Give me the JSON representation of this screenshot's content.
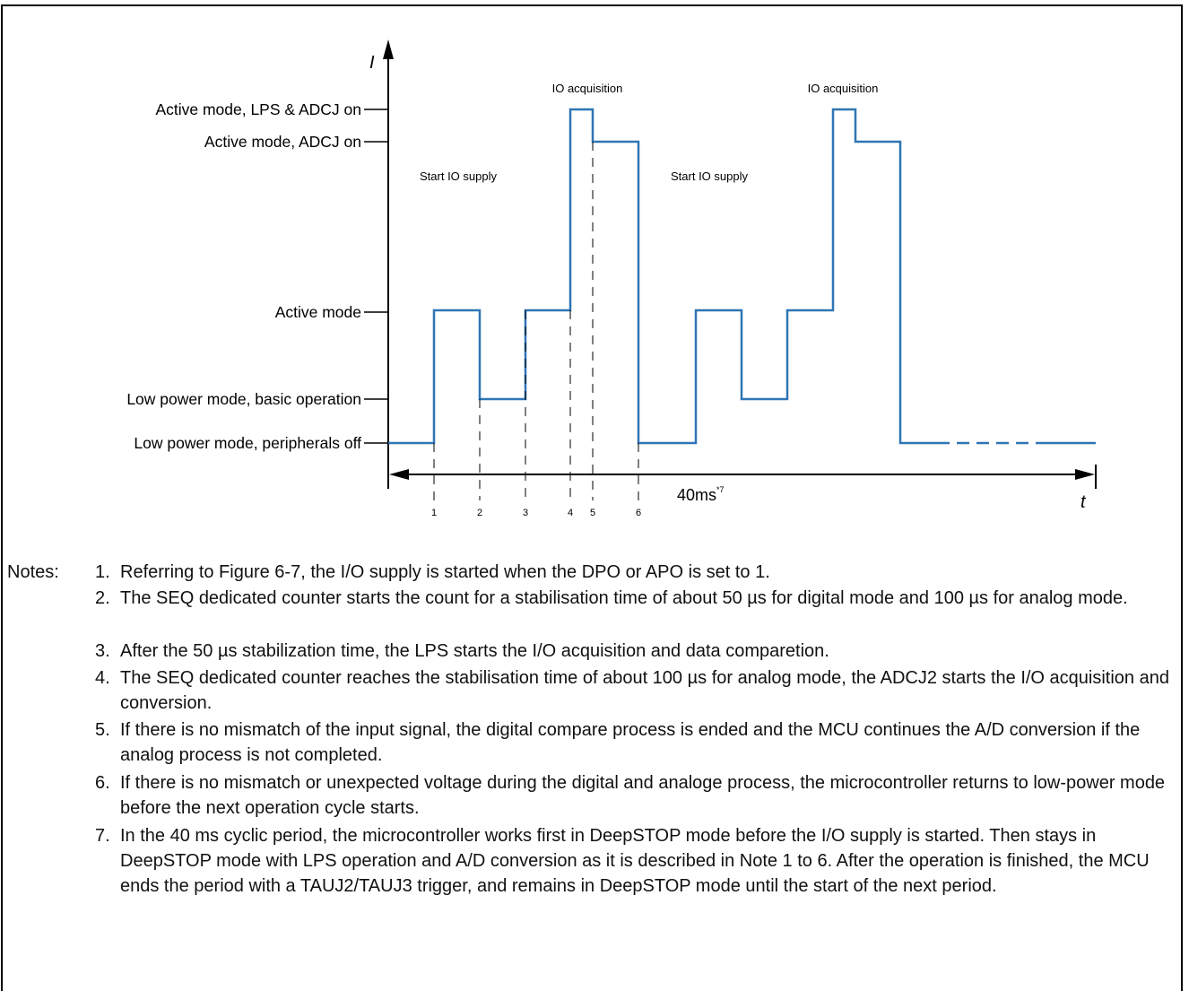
{
  "axes": {
    "y_label": "I",
    "x_label": "t"
  },
  "levels": [
    "Active mode, LPS & ADCJ on",
    "Active mode, ADCJ on",
    "Active mode",
    "Low power mode, basic operation",
    "Low power mode, peripherals off"
  ],
  "annotations": {
    "io_acquisition_1": "IO acquisition",
    "io_acquisition_2": "IO acquisition",
    "start_io_supply_1": "Start IO supply",
    "start_io_supply_2": "Start IO supply"
  },
  "period": {
    "label": "40ms",
    "sup": "*7"
  },
  "markers": [
    "1",
    "2",
    "3",
    "4",
    "5",
    "6"
  ],
  "notes": {
    "heading": "Notes:",
    "items": [
      {
        "num": "1.",
        "text": "Referring to Figure 6-7, the I/O supply is started when the DPO or APO is set to 1."
      },
      {
        "num": "2.",
        "text": "The SEQ dedicated counter starts the count for a stabilisation time of about 50 µs for digital mode and 100 µs for analog mode."
      },
      {
        "num": "3.",
        "text": "After the 50 µs stabilization time, the LPS starts the I/O acquisition and data comparetion."
      },
      {
        "num": "4.",
        "text": "The SEQ dedicated counter reaches the stabilisation time of about 100 µs for analog mode, the ADCJ2 starts the I/O acquisition and conversion."
      },
      {
        "num": "5.",
        "text": "If there is no mismatch of the input signal, the digital compare process is ended and the MCU continues the A/D conversion if the analog process is not completed."
      },
      {
        "num": "6.",
        "text": "If there is no mismatch or unexpected voltage during the digital and analoge process, the microcontroller returns to low-power mode before the next operation cycle starts."
      },
      {
        "num": "7.",
        "text": "In the 40 ms cyclic period, the microcontroller works first in DeepSTOP mode before the I/O supply is started. Then stays in DeepSTOP mode with LPS operation and A/D conversion as it is described in Note 1 to 6. After the operation is finished, the MCU ends the period with a TAUJ2/TAUJ3 trigger, and remains in DeepSTOP mode until the start of the next period."
      }
    ]
  }
}
